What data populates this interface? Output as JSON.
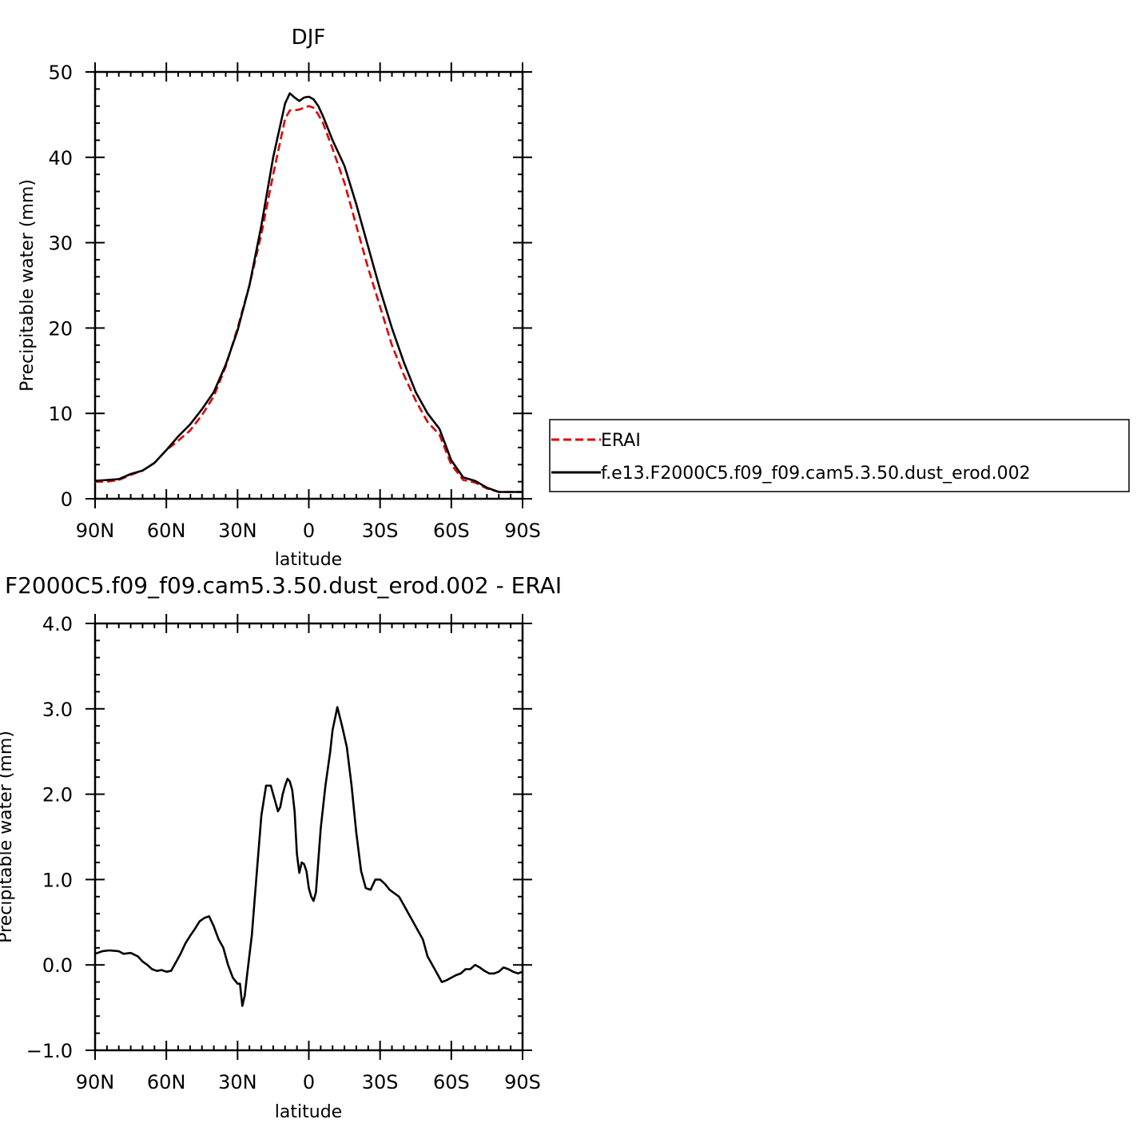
{
  "chart_data": [
    {
      "type": "line",
      "title": "DJF",
      "xlabel": "latitude",
      "ylabel": "Precipitable water (mm)",
      "xlim": [
        90,
        -90
      ],
      "ylim": [
        0,
        50
      ],
      "xticks": [
        90,
        60,
        30,
        0,
        -30,
        -60,
        -90
      ],
      "xtick_labels": [
        "90N",
        "60N",
        "30N",
        "0",
        "30S",
        "60S",
        "90S"
      ],
      "yticks": [
        0,
        10,
        20,
        30,
        40,
        50
      ],
      "ytick_labels": [
        "0",
        "10",
        "20",
        "30",
        "40",
        "50"
      ],
      "grid": false,
      "legend": {
        "position": "right",
        "entries": [
          "ERAI",
          "f.e13.F2000C5.f09_f09.cam5.3.50.dust_erod.002"
        ]
      },
      "series": [
        {
          "name": "ERAI",
          "color": "#e00000",
          "style": "dashed",
          "x": [
            90,
            85,
            80,
            75,
            70,
            65,
            60,
            55,
            50,
            45,
            40,
            35,
            30,
            25,
            20,
            15,
            10,
            8,
            6,
            4,
            2,
            0,
            -2,
            -4,
            -6,
            -10,
            -15,
            -20,
            -25,
            -30,
            -35,
            -40,
            -45,
            -50,
            -55,
            -60,
            -65,
            -70,
            -75,
            -80,
            -85,
            -90
          ],
          "y": [
            2.0,
            2.0,
            2.2,
            2.8,
            3.3,
            4.2,
            5.7,
            6.8,
            8.0,
            9.8,
            12.0,
            15.5,
            20.0,
            25.0,
            31.0,
            38.0,
            44.5,
            45.5,
            45.5,
            45.6,
            45.8,
            46.0,
            45.8,
            45.0,
            44.0,
            41.0,
            37.0,
            32.0,
            27.0,
            22.5,
            18.0,
            14.5,
            11.5,
            9.0,
            7.5,
            4.0,
            2.2,
            1.9,
            1.2,
            0.8,
            0.8,
            0.8
          ]
        },
        {
          "name": "f.e13.F2000C5.f09_f09.cam5.3.50.dust_erod.002",
          "color": "#000000",
          "style": "solid",
          "x": [
            90,
            85,
            80,
            75,
            70,
            65,
            60,
            55,
            50,
            45,
            40,
            35,
            30,
            25,
            20,
            15,
            10,
            8,
            6,
            4,
            2,
            0,
            -2,
            -4,
            -6,
            -10,
            -15,
            -20,
            -25,
            -30,
            -35,
            -40,
            -45,
            -50,
            -55,
            -60,
            -65,
            -70,
            -75,
            -80,
            -85,
            -90
          ],
          "y": [
            2.1,
            2.2,
            2.3,
            2.9,
            3.3,
            4.2,
            5.7,
            7.3,
            8.7,
            10.5,
            12.5,
            15.7,
            19.7,
            25.0,
            32.0,
            40.0,
            46.3,
            47.5,
            47.0,
            46.6,
            47.0,
            47.1,
            46.8,
            46.0,
            44.8,
            42.0,
            39.0,
            34.5,
            29.5,
            24.5,
            20.0,
            16.0,
            12.5,
            10.0,
            8.2,
            4.5,
            2.5,
            2.1,
            1.3,
            0.8,
            0.8,
            0.8
          ]
        }
      ]
    },
    {
      "type": "line",
      "title": "F2000C5.f09_f09.cam5.3.50.dust_erod.002 - ERAI",
      "xlabel": "latitude",
      "ylabel": "Precipitable water (mm)",
      "xlim": [
        90,
        -90
      ],
      "ylim": [
        -1.0,
        4.0
      ],
      "xticks": [
        90,
        60,
        30,
        0,
        -30,
        -60,
        -90
      ],
      "xtick_labels": [
        "90N",
        "60N",
        "30N",
        "0",
        "30S",
        "60S",
        "90S"
      ],
      "yticks": [
        -1.0,
        0.0,
        1.0,
        2.0,
        3.0,
        4.0
      ],
      "ytick_labels": [
        "−1.0",
        "0.0",
        "1.0",
        "2.0",
        "3.0",
        "4.0"
      ],
      "grid": false,
      "series": [
        {
          "color": "#000000",
          "style": "solid",
          "x": [
            90,
            87,
            84,
            80,
            78,
            75,
            72,
            70,
            68,
            66,
            64,
            62,
            60,
            58,
            56,
            54,
            52,
            50,
            48,
            46,
            44,
            42,
            40,
            38,
            36,
            34,
            32,
            30,
            29,
            28,
            27,
            26,
            24,
            22,
            20,
            18,
            16,
            15,
            14,
            13,
            12,
            11,
            10,
            9,
            8,
            7,
            6,
            5,
            4,
            3,
            2,
            1,
            0,
            -1,
            -2,
            -3,
            -5,
            -7,
            -9,
            -10,
            -12,
            -14,
            -16,
            -18,
            -20,
            -22,
            -24,
            -26,
            -28,
            -30,
            -32,
            -34,
            -36,
            -38,
            -40,
            -42,
            -44,
            -46,
            -48,
            -50,
            -52,
            -54,
            -56,
            -58,
            -60,
            -62,
            -64,
            -66,
            -68,
            -70,
            -72,
            -74,
            -76,
            -78,
            -80,
            -82,
            -84,
            -86,
            -88,
            -90
          ],
          "y": [
            0.13,
            0.16,
            0.17,
            0.16,
            0.13,
            0.14,
            0.1,
            0.04,
            0.0,
            -0.05,
            -0.07,
            -0.06,
            -0.08,
            -0.07,
            0.03,
            0.13,
            0.25,
            0.34,
            0.42,
            0.51,
            0.55,
            0.57,
            0.45,
            0.3,
            0.2,
            0.0,
            -0.15,
            -0.22,
            -0.22,
            -0.48,
            -0.36,
            -0.12,
            0.35,
            1.05,
            1.75,
            2.1,
            2.1,
            2.0,
            1.9,
            1.8,
            1.85,
            2.0,
            2.1,
            2.18,
            2.15,
            2.05,
            1.8,
            1.3,
            1.08,
            1.2,
            1.18,
            1.1,
            0.9,
            0.8,
            0.75,
            0.85,
            1.6,
            2.1,
            2.5,
            2.75,
            3.02,
            2.8,
            2.55,
            2.1,
            1.55,
            1.1,
            0.9,
            0.88,
            1.0,
            1.0,
            0.95,
            0.88,
            0.84,
            0.8,
            0.7,
            0.6,
            0.5,
            0.4,
            0.3,
            0.1,
            0.0,
            -0.1,
            -0.2,
            -0.18,
            -0.15,
            -0.12,
            -0.1,
            -0.05,
            -0.05,
            0.0,
            -0.03,
            -0.07,
            -0.1,
            -0.1,
            -0.08,
            -0.03,
            -0.05,
            -0.08,
            -0.1,
            -0.08
          ]
        }
      ]
    }
  ]
}
